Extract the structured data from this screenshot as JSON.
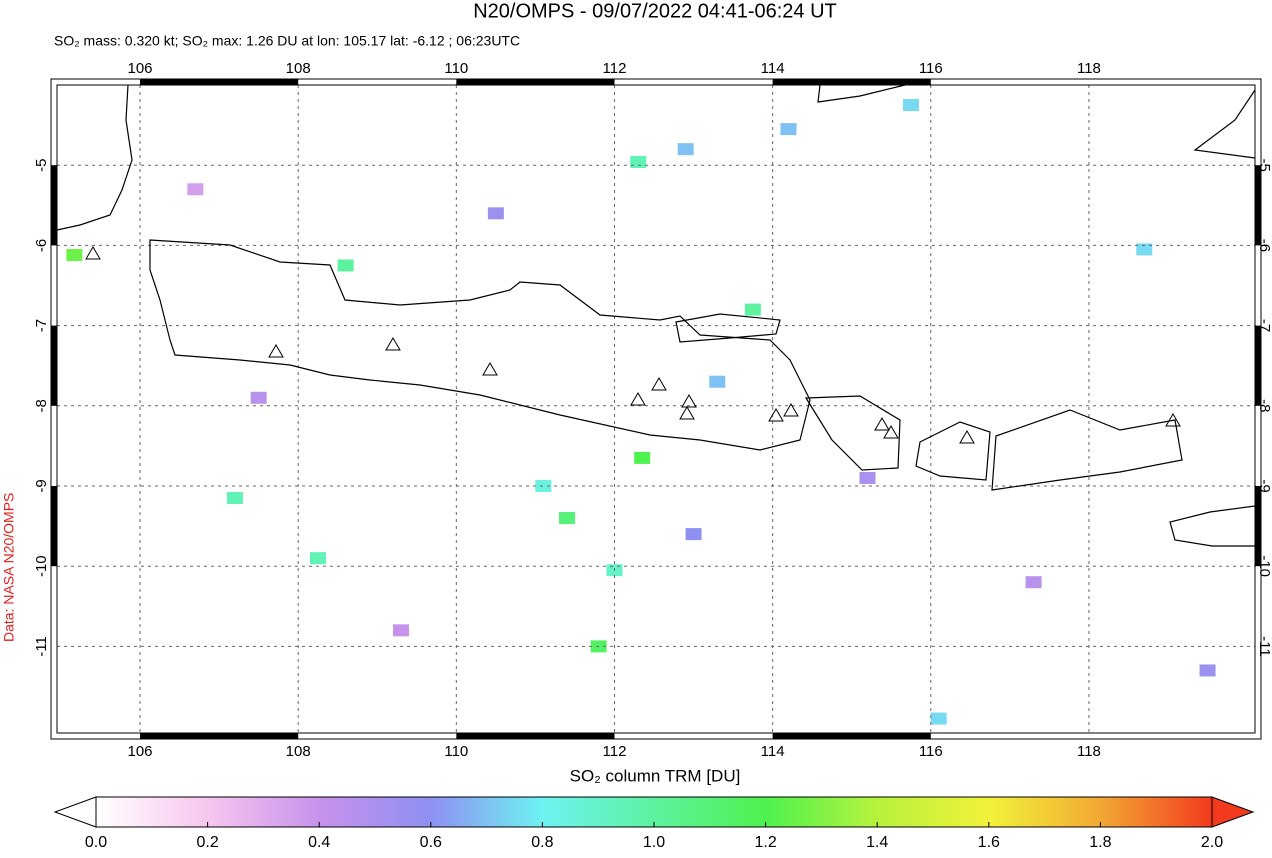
{
  "map": {
    "title": "N20/OMPS - 09/07/2022 04:41-06:24 UT",
    "subtitle": "SO₂ mass: 0.320 kt; SO₂ max: 1.26 DU at lon: 105.17 lat: -6.12 ; 06:23UTC",
    "credit": "Data: NASA N20/OMPS",
    "lonlim": [
      104.95,
      120.1
    ],
    "latlim": [
      -12.08,
      -4.0
    ],
    "lon_ticks": [
      106,
      108,
      110,
      112,
      114,
      116,
      118
    ],
    "lat_ticks": [
      -5,
      -6,
      -7,
      -8,
      -9,
      -10,
      -11
    ],
    "grid": true,
    "cells": [
      {
        "lon": 105.17,
        "lat": -6.12,
        "value": 1.26
      },
      {
        "lon": 108.6,
        "lat": -6.25,
        "value": 1.0
      },
      {
        "lon": 113.75,
        "lat": -6.8,
        "value": 1.0
      },
      {
        "lon": 112.3,
        "lat": -4.96,
        "value": 0.95
      },
      {
        "lon": 111.4,
        "lat": -9.4,
        "value": 1.1
      },
      {
        "lon": 111.8,
        "lat": -11.0,
        "value": 1.15
      },
      {
        "lon": 112.35,
        "lat": -8.65,
        "value": 1.2
      },
      {
        "lon": 112.0,
        "lat": -10.05,
        "value": 0.9
      },
      {
        "lon": 108.25,
        "lat": -9.9,
        "value": 0.95
      },
      {
        "lon": 107.2,
        "lat": -9.15,
        "value": 0.95
      },
      {
        "lon": 115.75,
        "lat": -4.25,
        "value": 0.75
      },
      {
        "lon": 118.7,
        "lat": -6.05,
        "value": 0.75
      },
      {
        "lon": 116.1,
        "lat": -11.9,
        "value": 0.75
      },
      {
        "lon": 112.9,
        "lat": -4.8,
        "value": 0.7
      },
      {
        "lon": 113.3,
        "lat": -7.7,
        "value": 0.7
      },
      {
        "lon": 114.2,
        "lat": -4.55,
        "value": 0.7
      },
      {
        "lon": 111.1,
        "lat": -9.0,
        "value": 0.85
      },
      {
        "lon": 110.5,
        "lat": -5.6,
        "value": 0.55
      },
      {
        "lon": 107.5,
        "lat": -7.9,
        "value": 0.45
      },
      {
        "lon": 115.2,
        "lat": -8.9,
        "value": 0.5
      },
      {
        "lon": 117.3,
        "lat": -10.2,
        "value": 0.45
      },
      {
        "lon": 119.5,
        "lat": -11.3,
        "value": 0.55
      },
      {
        "lon": 109.3,
        "lat": -10.8,
        "value": 0.4
      },
      {
        "lon": 106.7,
        "lat": -5.3,
        "value": 0.35
      },
      {
        "lon": 113.0,
        "lat": -9.6,
        "value": 0.6
      }
    ],
    "colorbar": {
      "label": "SO₂ column TRM [DU]",
      "range": [
        0,
        2
      ],
      "colors": [
        "#ffffff",
        "#f7c6ee",
        "#c792ec",
        "#8e90f2",
        "#6ef2f2",
        "#5cf2a0",
        "#4ef24e",
        "#b6f23c",
        "#f2f23a",
        "#f2a833",
        "#f23a1e"
      ],
      "ticks": [
        {
          "value": 0,
          "label": "0.0"
        },
        {
          "value": 0.2,
          "label": "0.2"
        },
        {
          "value": 0.4,
          "label": "0.4"
        },
        {
          "value": 0.6,
          "label": "0.6"
        },
        {
          "value": 0.8,
          "label": "0.8"
        },
        {
          "value": 1.0,
          "label": "1.0"
        },
        {
          "value": 1.2,
          "label": "1.2"
        },
        {
          "value": 1.4,
          "label": "1.4"
        },
        {
          "value": 1.6,
          "label": "1.6"
        },
        {
          "value": 1.8,
          "label": "1.8"
        },
        {
          "value": 2.0,
          "label": "2.0"
        }
      ]
    }
  }
}
